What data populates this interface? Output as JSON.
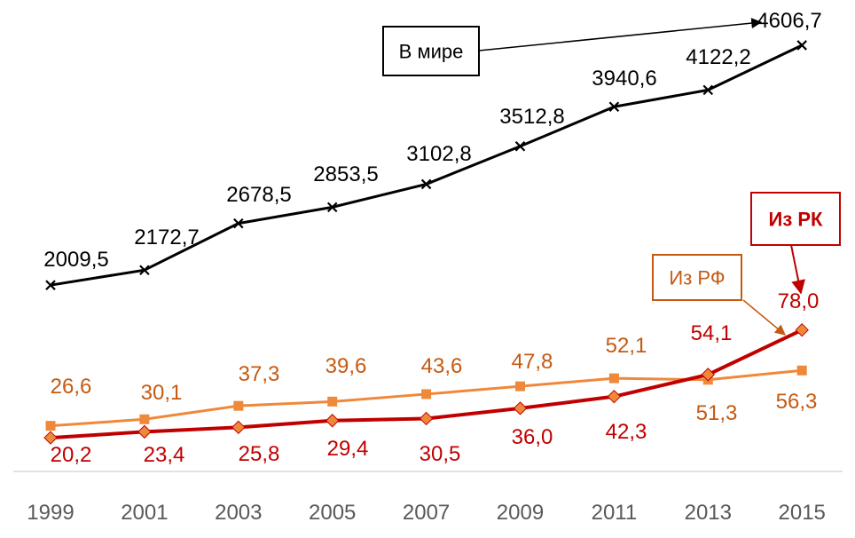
{
  "chart_data": {
    "type": "line",
    "x": [
      "1999",
      "2001",
      "2003",
      "2005",
      "2007",
      "2009",
      "2011",
      "2013",
      "2015"
    ],
    "series": [
      {
        "name": "В мире",
        "color": "#000000",
        "marker": "x",
        "values": [
          2009.5,
          2172.7,
          2678.5,
          2853.5,
          3102.8,
          3512.8,
          3940.6,
          4122.2,
          4606.7
        ],
        "labels": [
          "2009,5",
          "2172,7",
          "2678,5",
          "2853,5",
          "3102,8",
          "3512,8",
          "3940,6",
          "4122,2",
          "4606,7"
        ]
      },
      {
        "name": "Из РФ",
        "color": "#F0883A",
        "label_color": "#C55A11",
        "marker": "square",
        "values": [
          26.6,
          30.1,
          37.3,
          39.6,
          43.6,
          47.8,
          52.1,
          51.3,
          56.3
        ],
        "labels": [
          "26,6",
          "30,1",
          "37,3",
          "39,6",
          "43,6",
          "47,8",
          "52,1",
          "51,3",
          "56,3"
        ]
      },
      {
        "name": "Из РК",
        "color": "#C00000",
        "marker": "diamond",
        "marker_color": "#F0883A",
        "values": [
          20.2,
          23.4,
          25.8,
          29.4,
          30.5,
          36.0,
          42.3,
          54.1,
          78.0
        ],
        "labels": [
          "20,2",
          "23,4",
          "25,8",
          "29,4",
          "30,5",
          "36,0",
          "42,3",
          "54,1",
          "78,0"
        ]
      }
    ],
    "legend_boxes": [
      {
        "series": "В мире",
        "text": "В мире",
        "border": "#000000",
        "text_color": "#000000"
      },
      {
        "series": "Из РФ",
        "text": "Из РФ",
        "border": "#C55A11",
        "text_color": "#C55A11"
      },
      {
        "series": "Из РК",
        "text": "Из РК",
        "border": "#C00000",
        "text_color": "#C00000"
      }
    ],
    "axis_color": "#D9D9D9",
    "grid": false
  }
}
